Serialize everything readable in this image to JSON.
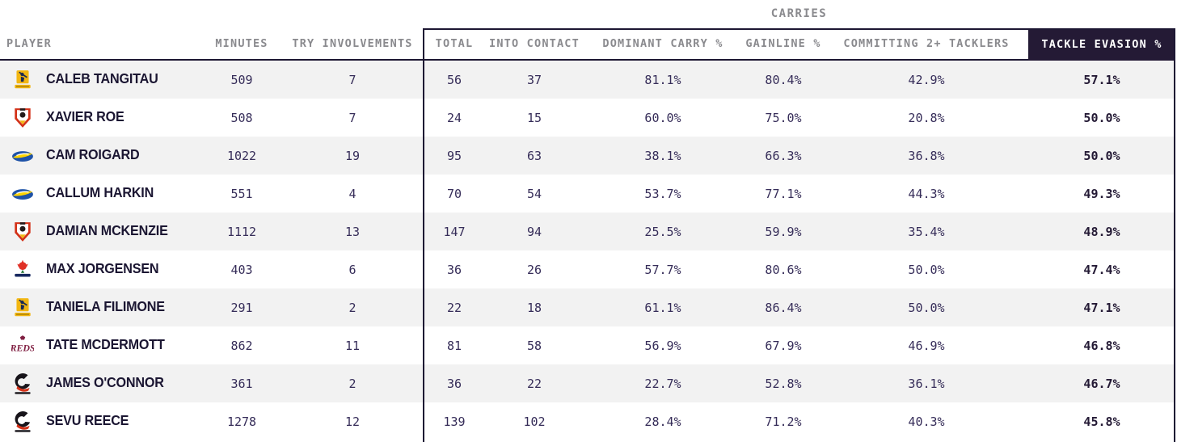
{
  "chart_data": {
    "type": "table",
    "group_label": "CARRIES",
    "columns": {
      "player": "PLAYER",
      "minutes": "MINUTES",
      "try_involvements": "TRY INVOLVEMENTS",
      "total": "TOTAL",
      "into_contact": "INTO CONTACT",
      "dominant_carry_pct": "DOMINANT CARRY %",
      "gainline_pct": "GAINLINE %",
      "committing_2plus_tacklers": "COMMITTING 2+ TACKLERS",
      "tackle_evasion_pct": "TACKLE EVASION %"
    },
    "grouped_columns": [
      "TOTAL",
      "INTO CONTACT",
      "DOMINANT CARRY %",
      "GAINLINE %",
      "COMMITTING 2+ TACKLERS",
      "TACKLE EVASION %"
    ],
    "rows": [
      {
        "player": "CALEB TANGITAU",
        "team": "highlanders",
        "minutes": "509",
        "try_involvements": "7",
        "total": "56",
        "into_contact": "37",
        "dominant_carry_pct": "81.1%",
        "gainline_pct": "80.4%",
        "committing_2plus_tacklers": "42.9%",
        "tackle_evasion_pct": "57.1%"
      },
      {
        "player": "XAVIER ROE",
        "team": "chiefs",
        "minutes": "508",
        "try_involvements": "7",
        "total": "24",
        "into_contact": "15",
        "dominant_carry_pct": "60.0%",
        "gainline_pct": "75.0%",
        "committing_2plus_tacklers": "20.8%",
        "tackle_evasion_pct": "50.0%"
      },
      {
        "player": "CAM ROIGARD",
        "team": "hurricanes",
        "minutes": "1022",
        "try_involvements": "19",
        "total": "95",
        "into_contact": "63",
        "dominant_carry_pct": "38.1%",
        "gainline_pct": "66.3%",
        "committing_2plus_tacklers": "36.8%",
        "tackle_evasion_pct": "50.0%"
      },
      {
        "player": "CALLUM HARKIN",
        "team": "hurricanes",
        "minutes": "551",
        "try_involvements": "4",
        "total": "70",
        "into_contact": "54",
        "dominant_carry_pct": "53.7%",
        "gainline_pct": "77.1%",
        "committing_2plus_tacklers": "44.3%",
        "tackle_evasion_pct": "49.3%"
      },
      {
        "player": "DAMIAN MCKENZIE",
        "team": "chiefs",
        "minutes": "1112",
        "try_involvements": "13",
        "total": "147",
        "into_contact": "94",
        "dominant_carry_pct": "25.5%",
        "gainline_pct": "59.9%",
        "committing_2plus_tacklers": "35.4%",
        "tackle_evasion_pct": "48.9%"
      },
      {
        "player": "MAX JORGENSEN",
        "team": "waratahs",
        "minutes": "403",
        "try_involvements": "6",
        "total": "36",
        "into_contact": "26",
        "dominant_carry_pct": "57.7%",
        "gainline_pct": "80.6%",
        "committing_2plus_tacklers": "50.0%",
        "tackle_evasion_pct": "47.4%"
      },
      {
        "player": "TANIELA FILIMONE",
        "team": "highlanders",
        "minutes": "291",
        "try_involvements": "2",
        "total": "22",
        "into_contact": "18",
        "dominant_carry_pct": "61.1%",
        "gainline_pct": "86.4%",
        "committing_2plus_tacklers": "50.0%",
        "tackle_evasion_pct": "47.1%"
      },
      {
        "player": "TATE MCDERMOTT",
        "team": "reds",
        "minutes": "862",
        "try_involvements": "11",
        "total": "81",
        "into_contact": "58",
        "dominant_carry_pct": "56.9%",
        "gainline_pct": "67.9%",
        "committing_2plus_tacklers": "46.9%",
        "tackle_evasion_pct": "46.8%"
      },
      {
        "player": "JAMES O'CONNOR",
        "team": "crusaders",
        "minutes": "361",
        "try_involvements": "2",
        "total": "36",
        "into_contact": "22",
        "dominant_carry_pct": "22.7%",
        "gainline_pct": "52.8%",
        "committing_2plus_tacklers": "36.1%",
        "tackle_evasion_pct": "46.7%"
      },
      {
        "player": "SEVU REECE",
        "team": "crusaders",
        "minutes": "1278",
        "try_involvements": "12",
        "total": "139",
        "into_contact": "102",
        "dominant_carry_pct": "28.4%",
        "gainline_pct": "71.2%",
        "committing_2plus_tacklers": "40.3%",
        "tackle_evasion_pct": "45.8%"
      }
    ]
  },
  "colors": {
    "highlight_header_bg": "#241a35",
    "highlight_header_text": "#ffffff",
    "row_stripe": "#f2f2f2",
    "header_text": "#8a8a8e",
    "data_text": "#362d59",
    "player_text": "#1b1632",
    "border": "#1d1733"
  }
}
